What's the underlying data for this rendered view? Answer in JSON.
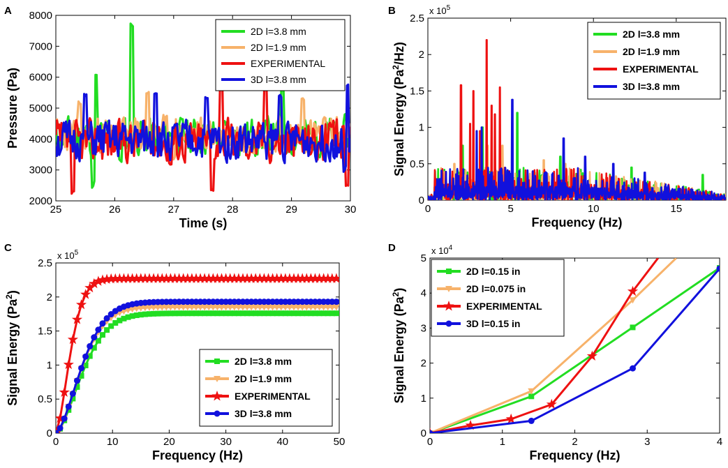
{
  "colors": {
    "green": "#22dd22",
    "orange": "#f7b26a",
    "red": "#ee1111",
    "blue": "#1111dd"
  },
  "chart_data": [
    {
      "panel": "A",
      "type": "line",
      "xlabel": "Time (s)",
      "ylabel": "Pressure (Pa)",
      "xlim": [
        25,
        30
      ],
      "ylim": [
        2000,
        8000
      ],
      "xticks": [
        25,
        26,
        27,
        28,
        29,
        30
      ],
      "yticks": [
        2000,
        3000,
        4000,
        5000,
        6000,
        7000,
        8000
      ],
      "legend_position": "top-right",
      "series": [
        {
          "name": "2D l=3.8 mm",
          "color": "green",
          "seed": 11,
          "base": 4100,
          "amp": 650,
          "spikes": [
            [
              25.68,
              6050
            ],
            [
              25.63,
              2450
            ],
            [
              26.28,
              7700
            ],
            [
              26.1,
              3300
            ],
            [
              28.85,
              5600
            ]
          ]
        },
        {
          "name": "2D l=1.9 mm",
          "color": "orange",
          "seed": 23,
          "base": 4150,
          "amp": 600,
          "spikes": [
            [
              25.4,
              5150
            ],
            [
              26.55,
              5500
            ],
            [
              29.2,
              5300
            ],
            [
              27.0,
              3400
            ]
          ]
        },
        {
          "name": "EXPERIMENTAL",
          "color": "red",
          "seed": 37,
          "base": 3950,
          "amp": 700,
          "spikes": [
            [
              25.28,
              2250
            ],
            [
              26.95,
              3200
            ],
            [
              27.65,
              2350
            ],
            [
              27.8,
              5800
            ],
            [
              28.55,
              5700
            ],
            [
              29.95,
              2550
            ]
          ]
        },
        {
          "name": "3D l=3.8 mm",
          "color": "blue",
          "seed": 51,
          "base": 3950,
          "amp": 650,
          "spikes": [
            [
              25.5,
              5400
            ],
            [
              26.7,
              5500
            ],
            [
              27.55,
              5300
            ],
            [
              28.8,
              5400
            ],
            [
              29.95,
              5700
            ],
            [
              29.9,
              2950
            ]
          ]
        }
      ]
    },
    {
      "panel": "B",
      "type": "line",
      "xlabel": "Frequency (Hz)",
      "ylabel": "Signal Energy (Pa2/Hz)",
      "ylabel_main": "Signal Energy (Pa",
      "ylabel_sup": "2",
      "ylabel_end": "/Hz)",
      "exponent_base": "x 10",
      "exponent_power": "5",
      "xlim": [
        0,
        18
      ],
      "ylim": [
        0,
        2.5
      ],
      "xticks": [
        0,
        5,
        10,
        15
      ],
      "yticks": [
        0,
        0.5,
        1,
        1.5,
        2,
        2.5
      ],
      "legend_position": "top-right",
      "series": [
        {
          "name": "2D l=3.8 mm",
          "color": "green",
          "seed": 3,
          "peaks": [
            [
              2.1,
              0.75
            ],
            [
              3.3,
              1.0
            ],
            [
              5.4,
              1.2
            ],
            [
              8.0,
              0.6
            ],
            [
              12.3,
              0.45
            ],
            [
              16.6,
              0.35
            ]
          ]
        },
        {
          "name": "2D l=1.9 mm",
          "color": "orange",
          "seed": 5,
          "peaks": [
            [
              1.6,
              0.5
            ],
            [
              3.6,
              0.75
            ],
            [
              4.5,
              0.75
            ],
            [
              7.0,
              0.55
            ],
            [
              8.3,
              0.5
            ]
          ]
        },
        {
          "name": "EXPERIMENTAL",
          "color": "red",
          "seed": 7,
          "peaks": [
            [
              2.0,
              1.58
            ],
            [
              2.55,
              1.05
            ],
            [
              2.75,
              1.5
            ],
            [
              3.15,
              0.95
            ],
            [
              3.55,
              2.2
            ],
            [
              3.85,
              1.3
            ],
            [
              4.35,
              1.55
            ],
            [
              4.05,
              1.18
            ]
          ]
        },
        {
          "name": "3D l=3.8 mm",
          "color": "blue",
          "seed": 9,
          "peaks": [
            [
              2.95,
              0.95
            ],
            [
              3.25,
              1.0
            ],
            [
              5.1,
              1.38
            ],
            [
              8.2,
              0.85
            ],
            [
              9.5,
              0.6
            ],
            [
              11.2,
              0.5
            ],
            [
              13.1,
              0.38
            ]
          ]
        }
      ]
    },
    {
      "panel": "C",
      "type": "line",
      "xlabel": "Frequency (Hz)",
      "ylabel": "Signal Energy (Pa2)",
      "ylabel_main": "Signal Energy (Pa",
      "ylabel_sup": "2",
      "ylabel_end": ")",
      "exponent_base": "x 10",
      "exponent_power": "5",
      "xlim": [
        0,
        50
      ],
      "ylim": [
        0,
        2.5
      ],
      "xticks": [
        0,
        10,
        20,
        30,
        40,
        50
      ],
      "yticks": [
        0,
        0.5,
        1,
        1.5,
        2,
        2.5
      ],
      "legend_position": "bottom-right",
      "series": [
        {
          "name": "2D l=3.8 mm",
          "color": "green",
          "marker": "square",
          "final": 1.76,
          "k": 0.16,
          "lag": 3.2
        },
        {
          "name": "2D l=1.9 mm",
          "color": "orange",
          "marker": "triangle",
          "final": 1.85,
          "k": 0.17,
          "lag": 2.8
        },
        {
          "name": "EXPERIMENTAL",
          "color": "red",
          "marker": "star",
          "final": 2.27,
          "k": 0.3,
          "lag": 2.2
        },
        {
          "name": "3D l=3.8 mm",
          "color": "blue",
          "marker": "circle",
          "final": 1.93,
          "k": 0.165,
          "lag": 3.0
        }
      ]
    },
    {
      "panel": "D",
      "type": "line",
      "xlabel": "Frequency (Hz)",
      "ylabel": "Signal Energy (Pa2)",
      "ylabel_main": "Signal Energy (Pa",
      "ylabel_sup": "2",
      "ylabel_end": ")",
      "exponent_base": "x 10",
      "exponent_power": "4",
      "xlim": [
        0,
        4
      ],
      "ylim": [
        0,
        5
      ],
      "xticks": [
        0,
        1,
        2,
        3,
        4
      ],
      "yticks": [
        0,
        1,
        2,
        3,
        4,
        5
      ],
      "legend_position": "top-left",
      "series": [
        {
          "name": "2D l=0.15 in",
          "color": "green",
          "marker": "square",
          "x": [
            0,
            1.4,
            2.8,
            4.0
          ],
          "y": [
            0,
            1.05,
            3.02,
            4.72
          ]
        },
        {
          "name": "2D l=0.075 in",
          "color": "orange",
          "marker": "triangle",
          "x": [
            0,
            1.4,
            2.8,
            3.4
          ],
          "y": [
            0,
            1.2,
            3.8,
            5.0
          ]
        },
        {
          "name": "EXPERIMENTAL",
          "color": "red",
          "marker": "star",
          "x": [
            0,
            0.56,
            1.12,
            1.68,
            2.24,
            2.8,
            3.15
          ],
          "y": [
            0,
            0.22,
            0.4,
            0.82,
            2.2,
            4.05,
            5.0
          ]
        },
        {
          "name": "3D l=0.15 in",
          "color": "blue",
          "marker": "circle",
          "x": [
            0,
            1.4,
            2.8,
            4.0
          ],
          "y": [
            0,
            0.35,
            1.85,
            4.7
          ]
        }
      ]
    }
  ]
}
